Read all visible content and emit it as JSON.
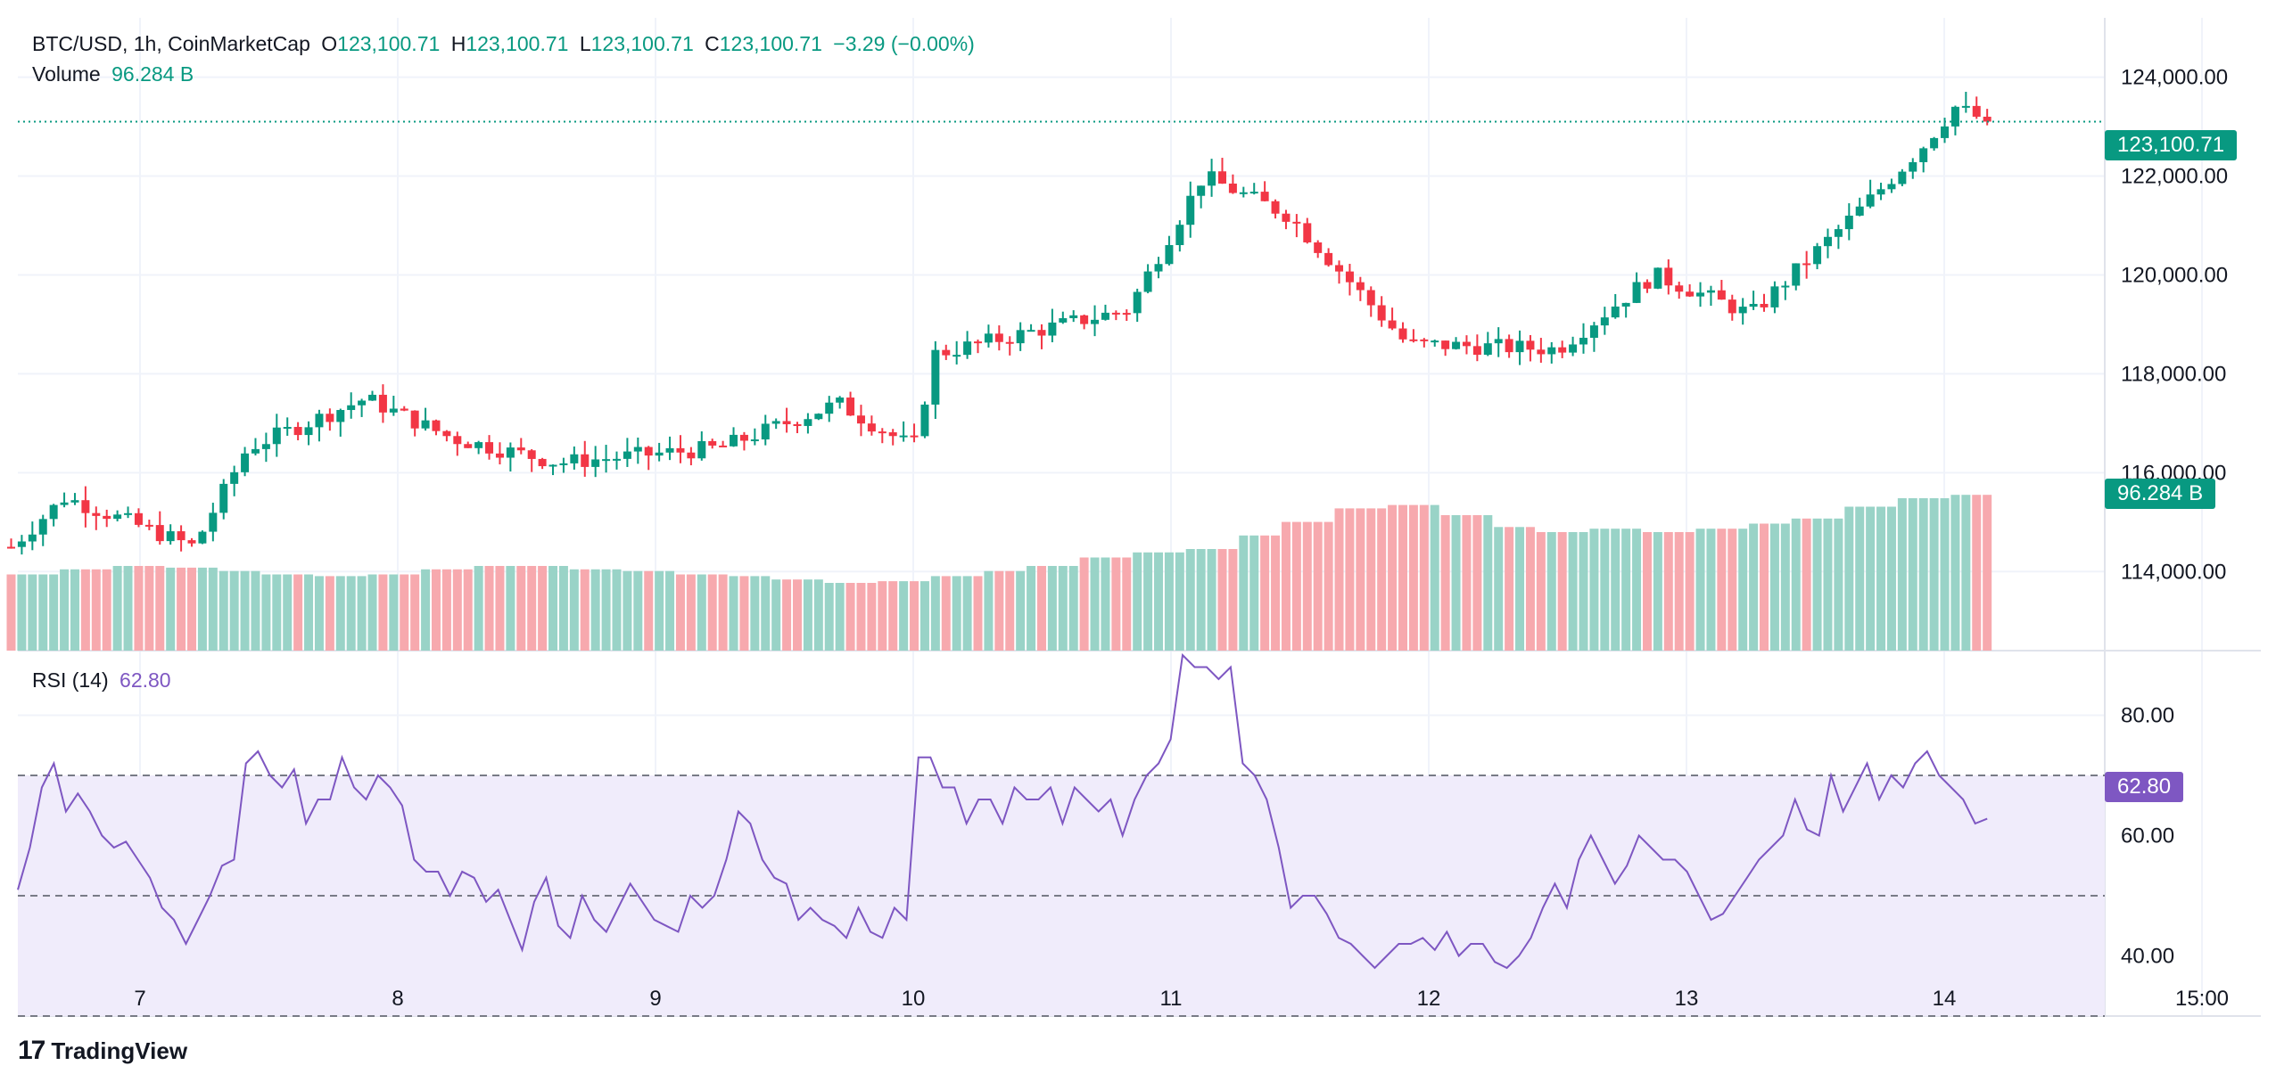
{
  "legend": {
    "symbol": "BTC/USD, 1h, CoinMarketCap",
    "open_label": "O",
    "open": "123,100.71",
    "high_label": "H",
    "high": "123,100.71",
    "low_label": "L",
    "low": "123,100.71",
    "close_label": "C",
    "close": "123,100.71",
    "change": "−3.29 (−0.00%)",
    "volume_label": "Volume",
    "volume": "96.284 B",
    "rsi_label": "RSI (14)",
    "rsi": "62.80"
  },
  "tags": {
    "price": "123,100.71",
    "volume": "96.284 B",
    "rsi": "62.80"
  },
  "brand": {
    "logo": "17",
    "name": "TradingView"
  },
  "colors": {
    "up": "#089981",
    "down": "#f23645",
    "volume_up": "#99d3c7",
    "volume_down": "#f7a9ae",
    "rsi_line": "#7e57c2",
    "rsi_band": "#f0ecfb"
  },
  "chart_data": [
    {
      "type": "candlestick",
      "title": "BTC/USD, 1h, CoinMarketCap",
      "x_ticks": [
        "7",
        "8",
        "9",
        "10",
        "11",
        "12",
        "13",
        "14",
        "15:00"
      ],
      "y_ticks": [
        "114,000.00",
        "116,000.00",
        "118,000.00",
        "120,000.00",
        "122,000.00",
        "124,000.00"
      ],
      "ylim": [
        112400,
        125200
      ],
      "last_price": 123100.71,
      "key_closes": [
        {
          "t": "6 12:00",
          "close": 114500
        },
        {
          "t": "6 17:00",
          "close": 115500
        },
        {
          "t": "7 05:00",
          "close": 114500
        },
        {
          "t": "7 10:00",
          "close": 116500
        },
        {
          "t": "7 21:00",
          "close": 117500
        },
        {
          "t": "8 05:00",
          "close": 116700
        },
        {
          "t": "8 15:00",
          "close": 116200
        },
        {
          "t": "9 06:00",
          "close": 116500
        },
        {
          "t": "9 17:00",
          "close": 117400
        },
        {
          "t": "10 00:00",
          "close": 116500
        },
        {
          "t": "10 02:00",
          "close": 118400
        },
        {
          "t": "10 20:00",
          "close": 119300
        },
        {
          "t": "11 03:00",
          "close": 122000
        },
        {
          "t": "11 11:00",
          "close": 121200
        },
        {
          "t": "11 22:00",
          "close": 118600
        },
        {
          "t": "12 12:00",
          "close": 118500
        },
        {
          "t": "12 21:00",
          "close": 120000
        },
        {
          "t": "13 06:00",
          "close": 119200
        },
        {
          "t": "13 17:00",
          "close": 121500
        },
        {
          "t": "13 22:00",
          "close": 122600
        },
        {
          "t": "14 01:00",
          "close": 123400
        },
        {
          "t": "14 04:00",
          "close": 123100.71
        }
      ]
    },
    {
      "type": "bar",
      "title": "Volume",
      "last_value": "96.284 B",
      "relative_heights": [
        0.45,
        0.48,
        0.5,
        0.49,
        0.47,
        0.45,
        0.44,
        0.45,
        0.48,
        0.5,
        0.5,
        0.48,
        0.47,
        0.45,
        0.44,
        0.42,
        0.4,
        0.41,
        0.44,
        0.47,
        0.5,
        0.55,
        0.58,
        0.6,
        0.68,
        0.76,
        0.84,
        0.86,
        0.8,
        0.73,
        0.7,
        0.72,
        0.7,
        0.72,
        0.75,
        0.78,
        0.85,
        0.9,
        0.92
      ]
    },
    {
      "type": "line",
      "title": "RSI (14)",
      "y_ticks": [
        "40.00",
        "60.00",
        "80.00"
      ],
      "ylim": [
        30,
        90
      ],
      "bands": [
        30,
        50,
        70
      ],
      "last_value": 62.8,
      "values": [
        51,
        58,
        68,
        72,
        64,
        67,
        64,
        60,
        58,
        59,
        56,
        53,
        48,
        46,
        42,
        46,
        50,
        55,
        56,
        72,
        74,
        70,
        68,
        71,
        62,
        66,
        66,
        73,
        68,
        66,
        70,
        68,
        65,
        56,
        54,
        54,
        50,
        54,
        53,
        49,
        51,
        46,
        41,
        49,
        53,
        45,
        43,
        50,
        46,
        44,
        48,
        52,
        49,
        46,
        45,
        44,
        50,
        48,
        50,
        56,
        64,
        62,
        56,
        53,
        52,
        46,
        48,
        46,
        45,
        43,
        48,
        44,
        43,
        48,
        46,
        73,
        73,
        68,
        68,
        62,
        66,
        66,
        62,
        68,
        66,
        66,
        68,
        62,
        68,
        66,
        64,
        66,
        60,
        66,
        70,
        72,
        76,
        90,
        88,
        88,
        86,
        88,
        72,
        70,
        66,
        58,
        48,
        50,
        50,
        47,
        43,
        42,
        40,
        38,
        40,
        42,
        42,
        43,
        41,
        44,
        40,
        42,
        42,
        39,
        38,
        40,
        43,
        48,
        52,
        48,
        56,
        60,
        56,
        52,
        55,
        60,
        58,
        56,
        56,
        54,
        50,
        46,
        47,
        50,
        53,
        56,
        58,
        60,
        66,
        61,
        60,
        70,
        64,
        68,
        72,
        66,
        70,
        68,
        72,
        74,
        70,
        68,
        66,
        62,
        62.8
      ]
    }
  ]
}
